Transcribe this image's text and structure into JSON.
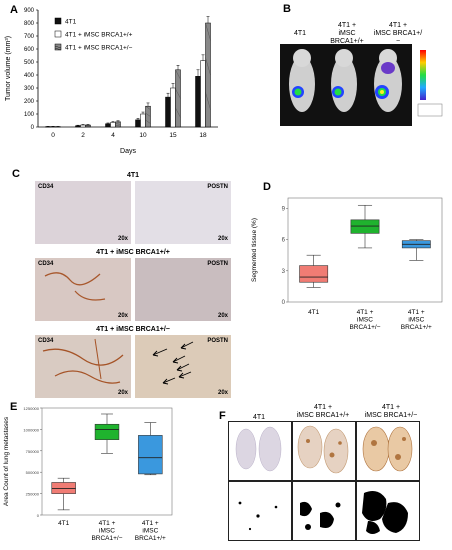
{
  "panels": {
    "A": "A",
    "B": "B",
    "C": "C",
    "D": "D",
    "E": "E",
    "F": "F"
  },
  "panelA": {
    "legend": [
      "4T1",
      "4T1 + iMSC BRCA1+/+",
      "4T1 + iMSC BRCA1+/−"
    ]
  },
  "panelB": {
    "labels": [
      "4T1",
      "4T1 +\niMSC BRCA1+/+",
      "4T1 +\niMSC BRCA1+/−"
    ]
  },
  "panelC": {
    "group1": "4T1",
    "group2": "4T1 + iMSC BRCA1+/+",
    "group3": "4T1 + iMSC BRCA1+/−",
    "stain_left": "CD34",
    "stain_right": "POSTN",
    "mag": "20x"
  },
  "panelF": {
    "labels": [
      "4T1",
      "4T1 +\niMSC BRCA1+/+",
      "4T1 +\niMSC BRCA1+/−"
    ]
  },
  "colors": {
    "red_box": "#f07c74",
    "green_box": "#1fb32e",
    "blue_box": "#3a98de"
  },
  "chart_data": [
    {
      "type": "bar",
      "panel": "A",
      "ylabel": "Tumor volume (mm³)",
      "xlabel": "Days",
      "categories": [
        "0",
        "2",
        "4",
        "10",
        "15",
        "18"
      ],
      "ylim": [
        0,
        900
      ],
      "yticks": [
        0,
        100,
        200,
        300,
        400,
        500,
        600,
        700,
        800,
        900
      ],
      "series": [
        {
          "name": "4T1",
          "values": [
            3,
            10,
            25,
            55,
            230,
            390
          ],
          "errors": [
            2,
            4,
            6,
            12,
            30,
            50
          ]
        },
        {
          "name": "4T1 + iMSC BRCA1+/+",
          "values": [
            3,
            15,
            35,
            100,
            300,
            510
          ],
          "errors": [
            2,
            5,
            8,
            15,
            35,
            45
          ]
        },
        {
          "name": "4T1 + iMSC BRCA1+/−",
          "values": [
            3,
            15,
            40,
            160,
            440,
            800
          ],
          "errors": [
            2,
            5,
            8,
            25,
            35,
            50
          ]
        }
      ],
      "colors": [
        "#111111",
        "#ffffff",
        "#888888"
      ]
    },
    {
      "type": "box",
      "panel": "D",
      "ylabel": "Segmented tissue (%)",
      "ylim": [
        0,
        10
      ],
      "yticks": [
        0,
        3,
        6,
        9
      ],
      "yticklabels": [
        "0",
        "3",
        "6",
        "9"
      ],
      "categories": [
        "4T1",
        "4T1 +\niMSC\nBRCA1+/−",
        "4T1 +\niMSC\nBRCA1+/+"
      ],
      "boxes": [
        {
          "min": 1.4,
          "q1": 1.9,
          "median": 2.4,
          "q3": 3.5,
          "max": 4.5,
          "color": "#f07c74"
        },
        {
          "min": 5.2,
          "q1": 6.6,
          "median": 7.3,
          "q3": 7.9,
          "max": 9.3,
          "color": "#1fb32e"
        },
        {
          "min": 4.0,
          "q1": 5.2,
          "median": 5.55,
          "q3": 5.9,
          "max": 6.0,
          "color": "#3a98de"
        }
      ]
    },
    {
      "type": "box",
      "panel": "E",
      "ylabel": "Area Count of lung metastases",
      "ylim": [
        0,
        1250000
      ],
      "yticks": [
        0,
        250000,
        500000,
        750000,
        1000000,
        1250000
      ],
      "yticklabels": [
        "0",
        "250000",
        "500000",
        "750000",
        "1000000",
        "1250000"
      ],
      "categories": [
        "4T1",
        "4T1 +\niMSC\nBRCA1+/−",
        "4T1 +\niMSC\nBRCA1+/+"
      ],
      "boxes": [
        {
          "min": 60000,
          "q1": 250000,
          "median": 310000,
          "q3": 380000,
          "max": 430000,
          "color": "#f07c74"
        },
        {
          "min": 720000,
          "q1": 880000,
          "median": 1000000,
          "q3": 1060000,
          "max": 1180000,
          "color": "#1fb32e"
        },
        {
          "min": 470000,
          "q1": 480000,
          "median": 670000,
          "q3": 930000,
          "max": 1080000,
          "color": "#3a98de"
        }
      ]
    }
  ]
}
